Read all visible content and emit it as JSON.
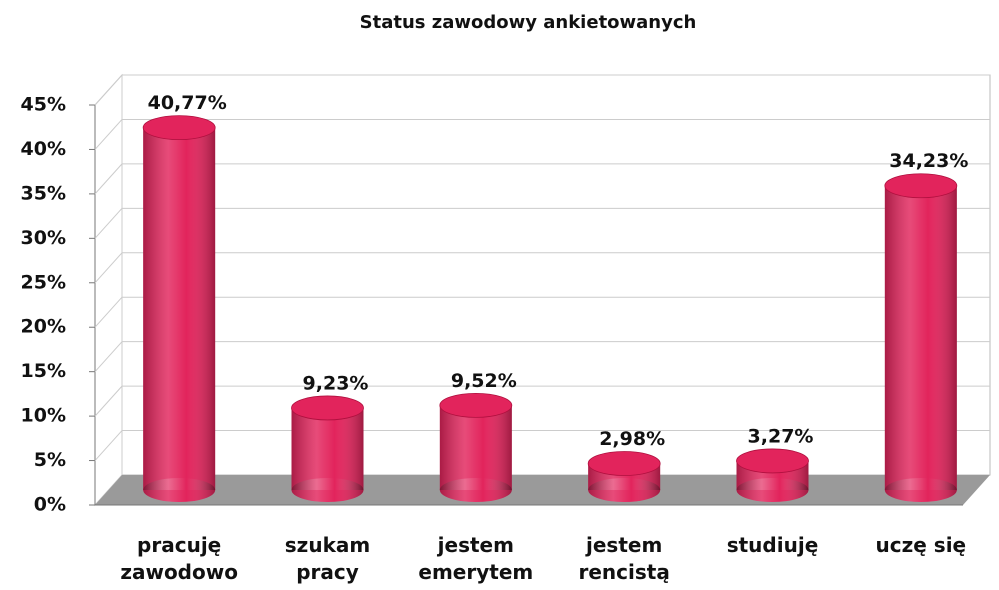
{
  "chart_data": {
    "type": "bar",
    "title": "Status zawodowy ankietowanych",
    "categories": [
      "pracuję zawodowo",
      "szukam pracy",
      "jestem emerytem",
      "jestem rencistą",
      "studiuję",
      "uczę się"
    ],
    "values": [
      40.77,
      9.23,
      9.52,
      2.98,
      3.27,
      34.23
    ],
    "value_labels": [
      "40,77%",
      "9,23%",
      "9,52%",
      "2,98%",
      "3,27%",
      "34,23%"
    ],
    "color": "#e2245c",
    "ylim": [
      0,
      45
    ],
    "yticks": [
      {
        "value": 0,
        "label": "0%"
      },
      {
        "value": 5,
        "label": "5%"
      },
      {
        "value": 10,
        "label": "10%"
      },
      {
        "value": 15,
        "label": "15%"
      },
      {
        "value": 20,
        "label": "20%"
      },
      {
        "value": 25,
        "label": "25%"
      },
      {
        "value": 30,
        "label": "30%"
      },
      {
        "value": 35,
        "label": "35%"
      },
      {
        "value": 40,
        "label": "40%"
      },
      {
        "value": 45,
        "label": "45%"
      }
    ],
    "grid": true
  }
}
